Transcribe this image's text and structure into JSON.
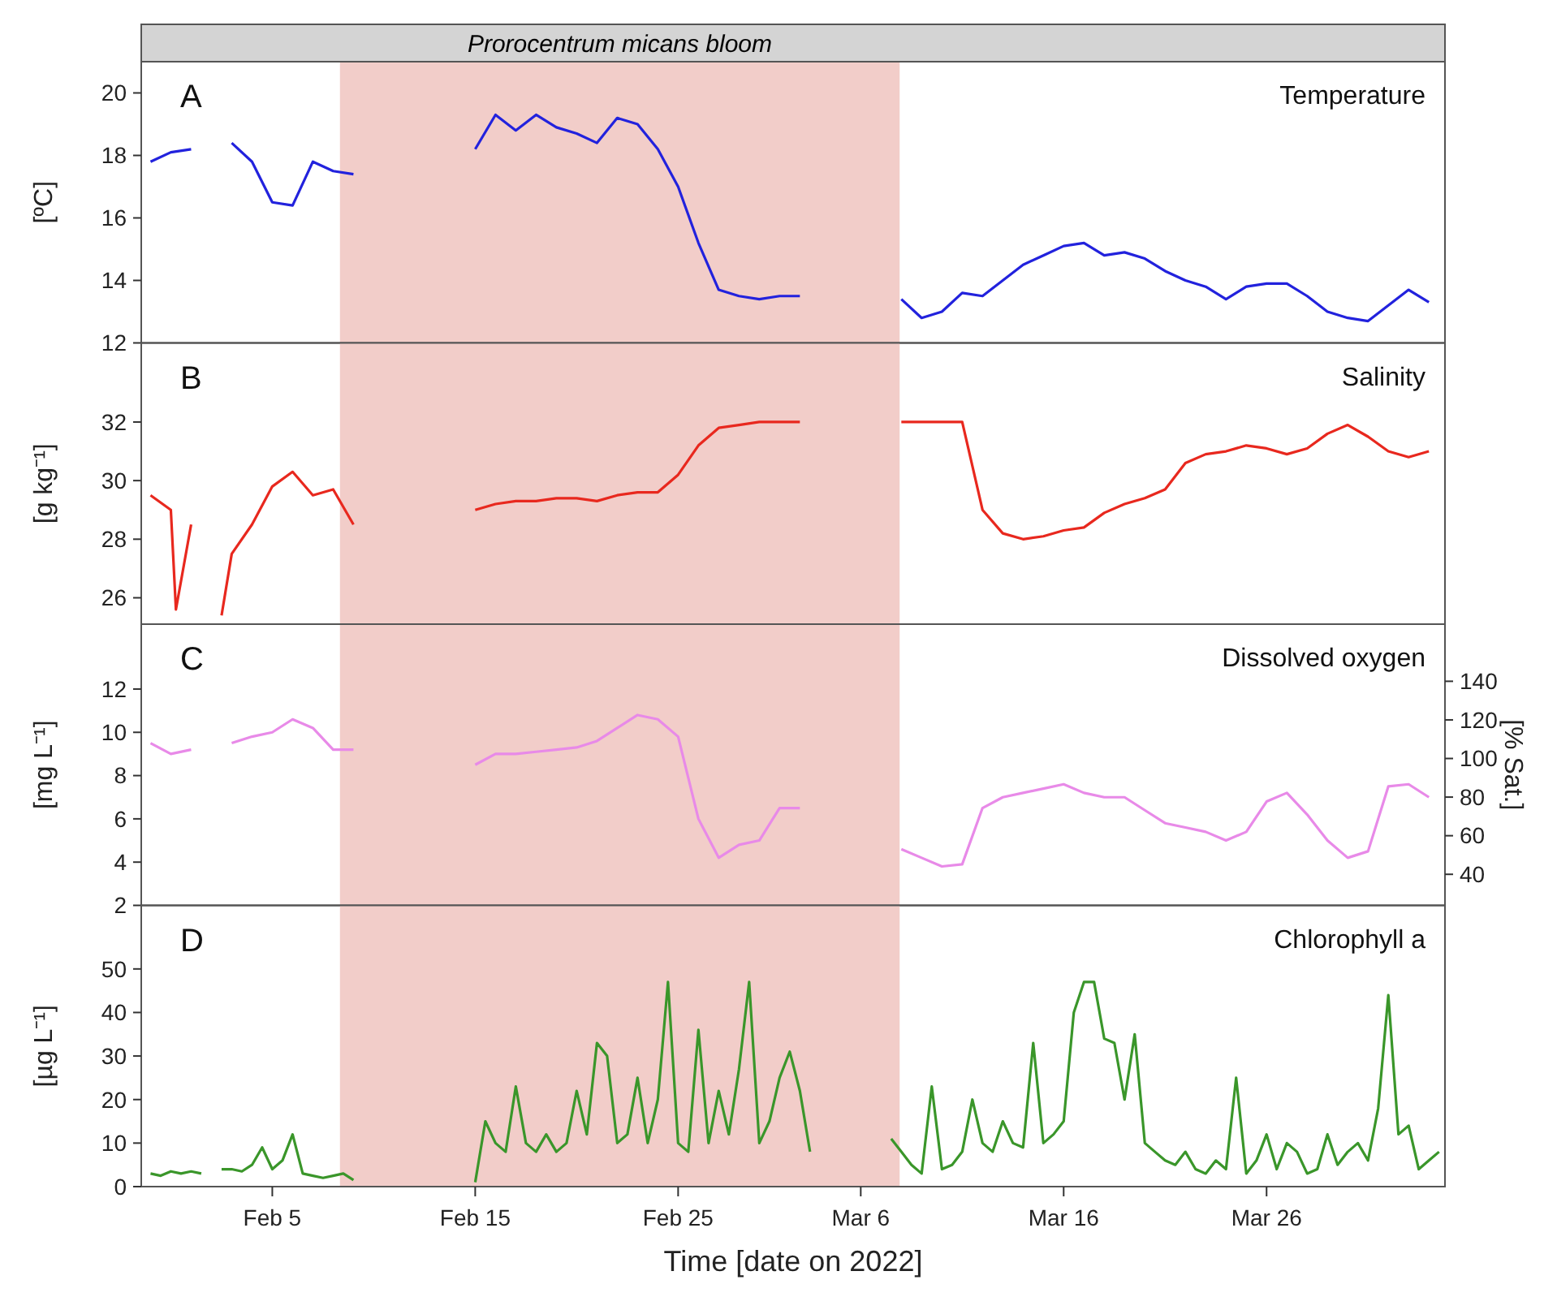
{
  "chart_data": [
    {
      "type": "line",
      "title": "Temperature",
      "ylabel": "[ºC]",
      "annotations": [
        "A"
      ],
      "xlim": [
        "2022-01-29T13:00",
        "2022-04-03T19:00"
      ],
      "ylim": [
        12,
        21
      ],
      "yticks": [
        12,
        14,
        16,
        18,
        20
      ],
      "tick_labels": "y",
      "grid": false,
      "bands": [
        {
          "axis": "x",
          "from": "2022-02-08T08:00",
          "to": "2022-03-07T22:00",
          "label": "Prorocentrum micans bloom",
          "color": "#f2cdc9"
        }
      ],
      "x": [
        "2022-01-30",
        "2022-01-31",
        "2022-02-01",
        "2022-02-02",
        "2022-02-03",
        "2022-02-04",
        "2022-02-05",
        "2022-02-06",
        "2022-02-07",
        "2022-02-08",
        "2022-02-09",
        "2022-02-12",
        "2022-02-15",
        "2022-02-16",
        "2022-02-17",
        "2022-02-18",
        "2022-02-19",
        "2022-02-20",
        "2022-02-21",
        "2022-02-22",
        "2022-02-23",
        "2022-02-24",
        "2022-02-25",
        "2022-02-26",
        "2022-02-27",
        "2022-02-28",
        "2022-03-01",
        "2022-03-02",
        "2022-03-03",
        "2022-03-05",
        "2022-03-08",
        "2022-03-09",
        "2022-03-10",
        "2022-03-11",
        "2022-03-12",
        "2022-03-13",
        "2022-03-14",
        "2022-03-15",
        "2022-03-16",
        "2022-03-17",
        "2022-03-18",
        "2022-03-19",
        "2022-03-20",
        "2022-03-21",
        "2022-03-22",
        "2022-03-23",
        "2022-03-24",
        "2022-03-25",
        "2022-03-26",
        "2022-03-27",
        "2022-03-28",
        "2022-03-29",
        "2022-03-30",
        "2022-03-31",
        "2022-04-01",
        "2022-04-02",
        "2022-04-03"
      ],
      "series": [
        {
          "color": "#2222dd",
          "values": [
            17.8,
            18.1,
            18.2,
            null,
            18.4,
            17.8,
            16.5,
            16.4,
            17.8,
            17.5,
            17.4,
            null,
            18.2,
            19.3,
            18.8,
            19.3,
            18.9,
            18.7,
            18.4,
            19.2,
            19.0,
            18.2,
            17.0,
            15.2,
            13.7,
            13.5,
            13.4,
            13.5,
            13.5,
            null,
            13.4,
            12.8,
            13.0,
            13.6,
            13.5,
            14.0,
            14.5,
            14.8,
            15.1,
            15.2,
            14.8,
            14.9,
            14.7,
            14.3,
            14.0,
            13.8,
            13.4,
            13.8,
            13.9,
            13.9,
            13.5,
            13.0,
            12.8,
            12.7,
            13.2,
            13.7,
            13.3
          ]
        }
      ]
    },
    {
      "type": "line",
      "title": "Salinity",
      "ylabel": "[g kg⁻¹]",
      "annotations": [
        "B"
      ],
      "xlim": [
        "2022-01-29T13:00",
        "2022-04-03T19:00"
      ],
      "ylim": [
        25.1,
        34.7
      ],
      "yticks": [
        26,
        28,
        30,
        32
      ],
      "tick_labels": "y",
      "grid": false,
      "bands": [
        {
          "axis": "x",
          "from": "2022-02-08T08:00",
          "to": "2022-03-07T22:00",
          "color": "#f2cdc9"
        }
      ],
      "x": [
        "2022-01-30",
        "2022-01-31",
        "2022-01-31T06:00",
        "2022-02-01",
        "2022-02-02T02:00",
        "2022-02-02T12:00",
        "2022-02-03",
        "2022-02-04",
        "2022-02-05",
        "2022-02-06",
        "2022-02-07",
        "2022-02-08",
        "2022-02-09",
        "2022-02-12",
        "2022-02-15",
        "2022-02-16",
        "2022-02-17",
        "2022-02-18",
        "2022-02-19",
        "2022-02-20",
        "2022-02-21",
        "2022-02-22",
        "2022-02-23",
        "2022-02-24",
        "2022-02-25",
        "2022-02-26",
        "2022-02-27",
        "2022-02-28",
        "2022-03-01",
        "2022-03-02",
        "2022-03-03",
        "2022-03-05",
        "2022-03-08",
        "2022-03-09",
        "2022-03-10",
        "2022-03-11",
        "2022-03-12",
        "2022-03-13",
        "2022-03-14",
        "2022-03-15",
        "2022-03-16",
        "2022-03-17",
        "2022-03-18",
        "2022-03-19",
        "2022-03-20",
        "2022-03-21",
        "2022-03-22",
        "2022-03-23",
        "2022-03-24",
        "2022-03-25",
        "2022-03-26",
        "2022-03-27",
        "2022-03-28",
        "2022-03-29",
        "2022-03-30",
        "2022-03-31",
        "2022-04-01",
        "2022-04-02",
        "2022-04-03"
      ],
      "series": [
        {
          "color": "#e8281e",
          "values": [
            29.5,
            29.0,
            25.6,
            28.5,
            null,
            25.4,
            27.5,
            28.5,
            29.8,
            30.3,
            29.5,
            29.7,
            28.5,
            null,
            29.0,
            29.2,
            29.3,
            29.3,
            29.4,
            29.4,
            29.3,
            29.5,
            29.6,
            29.6,
            30.2,
            31.2,
            31.8,
            31.9,
            32.0,
            32.0,
            32.0,
            null,
            32.0,
            32.0,
            32.0,
            32.0,
            29.0,
            28.2,
            28.0,
            28.1,
            28.3,
            28.4,
            28.9,
            29.2,
            29.4,
            29.7,
            30.6,
            30.9,
            31.0,
            31.2,
            31.1,
            30.9,
            31.1,
            31.6,
            31.9,
            31.5,
            31.0,
            30.8,
            31.0
          ]
        }
      ]
    },
    {
      "type": "line",
      "title": "Dissolved oxygen",
      "ylabel": "[mg L⁻¹]",
      "y2label": "[% Sat.]",
      "annotations": [
        "C"
      ],
      "xlim": [
        "2022-01-29T13:00",
        "2022-04-03T19:00"
      ],
      "ylim": [
        2,
        15
      ],
      "yticks": [
        2,
        4,
        6,
        8,
        10,
        12
      ],
      "y2lim": [
        23.9,
        169.6
      ],
      "y2ticks": [
        40,
        60,
        80,
        100,
        120,
        140
      ],
      "tick_labels": "y",
      "grid": false,
      "bands": [
        {
          "axis": "x",
          "from": "2022-02-08T08:00",
          "to": "2022-03-07T22:00",
          "color": "#f2cdc9"
        }
      ],
      "x": [
        "2022-01-30",
        "2022-01-31",
        "2022-02-01",
        "2022-02-02",
        "2022-02-03",
        "2022-02-04",
        "2022-02-05",
        "2022-02-06",
        "2022-02-07",
        "2022-02-08",
        "2022-02-09",
        "2022-02-12",
        "2022-02-15",
        "2022-02-16",
        "2022-02-17",
        "2022-02-18",
        "2022-02-19",
        "2022-02-20",
        "2022-02-21",
        "2022-02-22",
        "2022-02-23",
        "2022-02-24",
        "2022-02-25",
        "2022-02-26",
        "2022-02-27",
        "2022-02-28",
        "2022-03-01",
        "2022-03-02",
        "2022-03-03",
        "2022-03-05",
        "2022-03-08",
        "2022-03-09",
        "2022-03-10",
        "2022-03-11",
        "2022-03-12",
        "2022-03-13",
        "2022-03-14",
        "2022-03-15",
        "2022-03-16",
        "2022-03-17",
        "2022-03-18",
        "2022-03-19",
        "2022-03-20",
        "2022-03-21",
        "2022-03-22",
        "2022-03-23",
        "2022-03-24",
        "2022-03-25",
        "2022-03-26",
        "2022-03-27",
        "2022-03-28",
        "2022-03-29",
        "2022-03-30",
        "2022-03-31",
        "2022-04-01",
        "2022-04-02",
        "2022-04-03"
      ],
      "series": [
        {
          "color": "#e88ae8",
          "values": [
            9.5,
            9.0,
            9.2,
            null,
            9.5,
            9.8,
            10.0,
            10.6,
            10.2,
            9.2,
            9.2,
            null,
            8.5,
            9.0,
            9.0,
            9.1,
            9.2,
            9.3,
            9.6,
            10.2,
            10.8,
            10.6,
            9.8,
            6.0,
            4.2,
            4.8,
            5.0,
            6.5,
            6.5,
            null,
            4.6,
            4.2,
            3.8,
            3.9,
            6.5,
            7.0,
            7.2,
            7.4,
            7.6,
            7.2,
            7.0,
            7.0,
            6.4,
            5.8,
            5.6,
            5.4,
            5.0,
            5.4,
            6.8,
            7.2,
            6.2,
            5.0,
            4.2,
            4.5,
            7.5,
            7.6,
            7.0
          ]
        }
      ]
    },
    {
      "type": "line",
      "title": "Chlorophyll a",
      "ylabel": "[µg L⁻¹]",
      "xlabel": "Time [date on 2022]",
      "annotations": [
        "D"
      ],
      "xlim": [
        "2022-01-29T13:00",
        "2022-04-03T19:00"
      ],
      "ylim": [
        0,
        64.6
      ],
      "yticks": [
        0,
        10,
        20,
        30,
        40,
        50
      ],
      "grid": false,
      "xticks": [
        {
          "value": "2022-02-05",
          "label": "Feb 5"
        },
        {
          "value": "2022-02-15",
          "label": "Feb 15"
        },
        {
          "value": "2022-02-25",
          "label": "Feb 25"
        },
        {
          "value": "2022-03-06",
          "label": "Mar 6"
        },
        {
          "value": "2022-03-16",
          "label": "Mar 16"
        },
        {
          "value": "2022-03-26",
          "label": "Mar 26"
        }
      ],
      "bands": [
        {
          "axis": "x",
          "from": "2022-02-08T08:00",
          "to": "2022-03-07T22:00",
          "color": "#f2cdc9"
        }
      ],
      "x": [
        "2022-01-30",
        "2022-01-30T12:00",
        "2022-01-31",
        "2022-01-31T12:00",
        "2022-02-01",
        "2022-02-01T12:00",
        "2022-02-02",
        "2022-02-02T12:00",
        "2022-02-03",
        "2022-02-03T12:00",
        "2022-02-04",
        "2022-02-04T12:00",
        "2022-02-05",
        "2022-02-05T12:00",
        "2022-02-06",
        "2022-02-06T12:00",
        "2022-02-07",
        "2022-02-07T12:00",
        "2022-02-08",
        "2022-02-08T12:00",
        "2022-02-09",
        "2022-02-12",
        "2022-02-15",
        "2022-02-15T12:00",
        "2022-02-16",
        "2022-02-16T12:00",
        "2022-02-17",
        "2022-02-17T12:00",
        "2022-02-18",
        "2022-02-18T12:00",
        "2022-02-19",
        "2022-02-19T12:00",
        "2022-02-20",
        "2022-02-20T12:00",
        "2022-02-21",
        "2022-02-21T12:00",
        "2022-02-22",
        "2022-02-22T12:00",
        "2022-02-23",
        "2022-02-23T12:00",
        "2022-02-24",
        "2022-02-24T12:00",
        "2022-02-25",
        "2022-02-25T12:00",
        "2022-02-26",
        "2022-02-26T12:00",
        "2022-02-27",
        "2022-02-27T12:00",
        "2022-02-28",
        "2022-02-28T12:00",
        "2022-03-01",
        "2022-03-01T12:00",
        "2022-03-02",
        "2022-03-02T12:00",
        "2022-03-03",
        "2022-03-03T12:00",
        "2022-03-05",
        "2022-03-07T12:00",
        "2022-03-08",
        "2022-03-08T12:00",
        "2022-03-09",
        "2022-03-09T12:00",
        "2022-03-10",
        "2022-03-10T12:00",
        "2022-03-11",
        "2022-03-11T12:00",
        "2022-03-12",
        "2022-03-12T12:00",
        "2022-03-13",
        "2022-03-13T12:00",
        "2022-03-14",
        "2022-03-14T12:00",
        "2022-03-15",
        "2022-03-15T12:00",
        "2022-03-16",
        "2022-03-16T12:00",
        "2022-03-17",
        "2022-03-17T12:00",
        "2022-03-18",
        "2022-03-18T12:00",
        "2022-03-19",
        "2022-03-19T12:00",
        "2022-03-20",
        "2022-03-20T12:00",
        "2022-03-21",
        "2022-03-21T12:00",
        "2022-03-22",
        "2022-03-22T12:00",
        "2022-03-23",
        "2022-03-23T12:00",
        "2022-03-24",
        "2022-03-24T12:00",
        "2022-03-25",
        "2022-03-25T12:00",
        "2022-03-26",
        "2022-03-26T12:00",
        "2022-03-27",
        "2022-03-27T12:00",
        "2022-03-28",
        "2022-03-28T12:00",
        "2022-03-29",
        "2022-03-29T12:00",
        "2022-03-30",
        "2022-03-30T12:00",
        "2022-03-31",
        "2022-03-31T12:00",
        "2022-04-01",
        "2022-04-01T12:00",
        "2022-04-02",
        "2022-04-02T12:00",
        "2022-04-03",
        "2022-04-03T12:00"
      ],
      "series": [
        {
          "color": "#3a962a",
          "values": [
            3,
            2.5,
            3.5,
            3,
            3.5,
            3,
            null,
            4,
            4,
            3.5,
            5,
            9,
            4,
            6,
            12,
            3,
            2.5,
            2,
            2.5,
            3,
            1.5,
            null,
            1,
            15,
            10,
            8,
            23,
            10,
            8,
            12,
            8,
            10,
            22,
            12,
            33,
            30,
            10,
            12,
            25,
            10,
            20,
            47,
            10,
            8,
            36,
            10,
            22,
            12,
            27,
            47,
            10,
            15,
            25,
            31,
            22,
            8,
            null,
            11,
            8,
            5,
            3,
            23,
            4,
            5,
            8,
            20,
            10,
            8,
            15,
            10,
            9,
            33,
            10,
            12,
            15,
            40,
            47,
            47,
            34,
            33,
            20,
            35,
            10,
            8,
            6,
            5,
            8,
            4,
            3,
            6,
            4,
            25,
            3,
            6,
            12,
            4,
            10,
            8,
            3,
            4,
            12,
            5,
            8,
            10,
            6,
            18,
            44,
            12,
            14,
            4,
            6,
            8
          ]
        }
      ]
    }
  ]
}
